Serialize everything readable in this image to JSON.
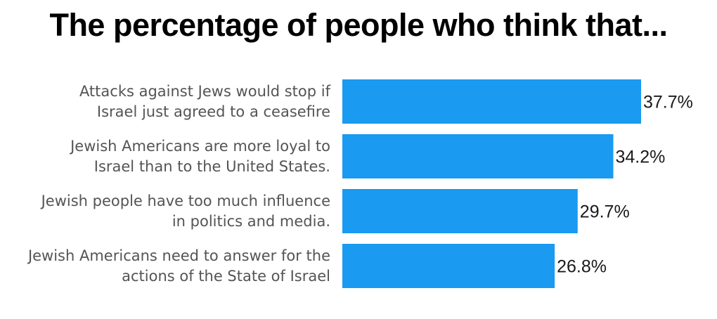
{
  "chart_data": {
    "type": "bar",
    "orientation": "horizontal",
    "title": "The percentage of people who think that...",
    "categories": [
      [
        "Attacks against Jews would stop if",
        "Israel just agreed to a ceasefire"
      ],
      [
        "Jewish Americans are more loyal to",
        "Israel than to the United States."
      ],
      [
        "Jewish people have too much influence",
        "in politics and media."
      ],
      [
        "Jewish Americans need to answer for the",
        "actions of the State of Israel"
      ]
    ],
    "values": [
      37.7,
      34.2,
      29.7,
      26.8
    ],
    "value_labels": [
      "37.7%",
      "34.2%",
      "29.7%",
      "26.8%"
    ],
    "bar_color": "#1a9af0",
    "xlim": [
      0,
      37.7
    ],
    "grid": false,
    "legend": "none"
  }
}
